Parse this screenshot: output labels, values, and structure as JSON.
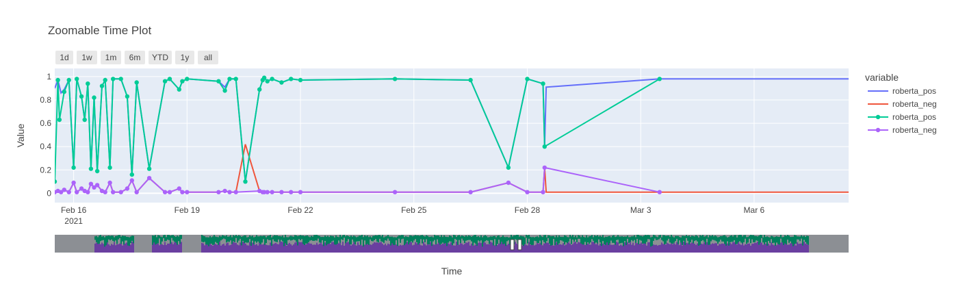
{
  "chart_data": {
    "type": "line",
    "title": "Zoomable Time Plot",
    "xlabel": "Time",
    "ylabel": "Value",
    "x_range": [
      "2021-02-15T12:00",
      "2021-03-08T12:00"
    ],
    "ylim": [
      -0.08,
      1.07
    ],
    "x_ticks": [
      {
        "x": "2021-02-16",
        "label": "Feb 16",
        "sublabel": "2021"
      },
      {
        "x": "2021-02-19",
        "label": "Feb 19",
        "sublabel": ""
      },
      {
        "x": "2021-02-22",
        "label": "Feb 22",
        "sublabel": ""
      },
      {
        "x": "2021-02-25",
        "label": "Feb 25",
        "sublabel": ""
      },
      {
        "x": "2021-02-28",
        "label": "Feb 28",
        "sublabel": ""
      },
      {
        "x": "2021-03-03",
        "label": "Mar 3",
        "sublabel": ""
      },
      {
        "x": "2021-03-06",
        "label": "Mar 6",
        "sublabel": ""
      }
    ],
    "y_ticks": [
      0,
      0.2,
      0.4,
      0.6,
      0.8,
      1
    ],
    "grid": true,
    "legend": {
      "title": "variable",
      "placement": "right"
    },
    "range_selector": [
      "1d",
      "1w",
      "1m",
      "6m",
      "YTD",
      "1y",
      "all"
    ],
    "range_slider": true,
    "series": [
      {
        "name": "roberta_pos",
        "mode": "lines",
        "color": "#636efa",
        "points": [
          [
            "2021-02-15T12:00",
            0.9
          ],
          [
            "2021-02-15T14:00",
            0.97
          ],
          [
            "2021-02-15T16:00",
            0.86
          ],
          [
            "2021-02-15T18:00",
            0.89
          ],
          [
            "2021-02-15T21:00",
            0.97
          ],
          [
            "2021-02-16T00:00",
            0.22
          ],
          [
            "2021-02-16T02:00",
            0.98
          ],
          [
            "2021-02-16T05:00",
            0.83
          ],
          [
            "2021-02-16T07:00",
            0.63
          ],
          [
            "2021-02-16T09:00",
            0.94
          ],
          [
            "2021-02-16T11:00",
            0.21
          ],
          [
            "2021-02-16T13:00",
            0.82
          ],
          [
            "2021-02-16T15:00",
            0.19
          ],
          [
            "2021-02-16T18:00",
            0.92
          ],
          [
            "2021-02-16T20:00",
            0.97
          ],
          [
            "2021-02-16T23:00",
            0.22
          ],
          [
            "2021-02-17T01:00",
            0.98
          ],
          [
            "2021-02-17T06:00",
            0.98
          ],
          [
            "2021-02-17T10:00",
            0.83
          ],
          [
            "2021-02-17T13:00",
            0.16
          ],
          [
            "2021-02-17T16:00",
            0.95
          ],
          [
            "2021-02-18T00:00",
            0.21
          ],
          [
            "2021-02-18T10:00",
            0.96
          ],
          [
            "2021-02-18T13:00",
            0.98
          ],
          [
            "2021-02-18T19:00",
            0.89
          ],
          [
            "2021-02-18T21:00",
            0.96
          ],
          [
            "2021-02-19T00:00",
            0.98
          ],
          [
            "2021-02-19T20:00",
            0.96
          ],
          [
            "2021-02-20T00:00",
            0.91
          ],
          [
            "2021-02-20T03:00",
            0.98
          ],
          [
            "2021-02-20T07:00",
            0.98
          ],
          [
            "2021-02-20T13:00",
            0.1
          ],
          [
            "2021-02-20T22:00",
            0.89
          ],
          [
            "2021-02-21T00:00",
            0.97
          ],
          [
            "2021-02-21T01:00",
            0.99
          ],
          [
            "2021-02-21T03:00",
            0.96
          ],
          [
            "2021-02-21T06:00",
            0.98
          ],
          [
            "2021-02-21T12:00",
            0.95
          ],
          [
            "2021-02-21T18:00",
            0.98
          ],
          [
            "2021-02-22T00:00",
            0.97
          ],
          [
            "2021-02-24T12:00",
            0.98
          ],
          [
            "2021-02-26T12:00",
            0.97
          ],
          [
            "2021-02-27T12:00",
            0.22
          ],
          [
            "2021-02-28T00:00",
            0.98
          ],
          [
            "2021-02-28T10:00",
            0.94
          ],
          [
            "2021-02-28T11:00",
            0.4
          ],
          [
            "2021-02-28T12:00",
            0.91
          ],
          [
            "2021-03-03T12:00",
            0.98
          ],
          [
            "2021-03-08T12:00",
            0.98
          ]
        ]
      },
      {
        "name": "roberta_neg",
        "mode": "lines",
        "color": "#ef553b",
        "points": [
          [
            "2021-02-15T12:00",
            0.01
          ],
          [
            "2021-02-15T14:00",
            0.02
          ],
          [
            "2021-02-15T16:00",
            0.01
          ],
          [
            "2021-02-15T18:00",
            0.03
          ],
          [
            "2021-02-15T21:00",
            0.01
          ],
          [
            "2021-02-16T00:00",
            0.09
          ],
          [
            "2021-02-16T02:00",
            0.01
          ],
          [
            "2021-02-16T05:00",
            0.04
          ],
          [
            "2021-02-16T07:00",
            0.02
          ],
          [
            "2021-02-16T09:00",
            0.01
          ],
          [
            "2021-02-16T11:00",
            0.08
          ],
          [
            "2021-02-16T13:00",
            0.05
          ],
          [
            "2021-02-16T15:00",
            0.07
          ],
          [
            "2021-02-16T18:00",
            0.02
          ],
          [
            "2021-02-16T20:00",
            0.01
          ],
          [
            "2021-02-16T23:00",
            0.09
          ],
          [
            "2021-02-17T01:00",
            0.01
          ],
          [
            "2021-02-17T06:00",
            0.01
          ],
          [
            "2021-02-17T10:00",
            0.04
          ],
          [
            "2021-02-17T13:00",
            0.11
          ],
          [
            "2021-02-17T16:00",
            0.01
          ],
          [
            "2021-02-18T00:00",
            0.13
          ],
          [
            "2021-02-18T10:00",
            0.01
          ],
          [
            "2021-02-18T13:00",
            0.01
          ],
          [
            "2021-02-18T19:00",
            0.04
          ],
          [
            "2021-02-18T21:00",
            0.01
          ],
          [
            "2021-02-19T00:00",
            0.01
          ],
          [
            "2021-02-19T20:00",
            0.01
          ],
          [
            "2021-02-20T00:00",
            0.02
          ],
          [
            "2021-02-20T03:00",
            0.01
          ],
          [
            "2021-02-20T07:00",
            0.01
          ],
          [
            "2021-02-20T13:00",
            0.42
          ],
          [
            "2021-02-20T22:00",
            0.02
          ],
          [
            "2021-02-21T00:00",
            0.01
          ],
          [
            "2021-02-21T01:00",
            0.01
          ],
          [
            "2021-02-21T03:00",
            0.01
          ],
          [
            "2021-02-21T06:00",
            0.01
          ],
          [
            "2021-02-21T12:00",
            0.01
          ],
          [
            "2021-02-21T18:00",
            0.01
          ],
          [
            "2021-02-22T00:00",
            0.01
          ],
          [
            "2021-02-24T12:00",
            0.01
          ],
          [
            "2021-02-26T12:00",
            0.01
          ],
          [
            "2021-02-27T12:00",
            0.09
          ],
          [
            "2021-02-28T00:00",
            0.01
          ],
          [
            "2021-02-28T10:00",
            0.01
          ],
          [
            "2021-02-28T11:00",
            0.22
          ],
          [
            "2021-02-28T12:00",
            0.01
          ],
          [
            "2021-03-03T12:00",
            0.01
          ],
          [
            "2021-03-08T12:00",
            0.01
          ]
        ]
      },
      {
        "name": "roberta_pos",
        "mode": "lines+markers",
        "color": "#00cc96",
        "points": [
          [
            "2021-02-15T12:00",
            0.1
          ],
          [
            "2021-02-15T14:00",
            0.97
          ],
          [
            "2021-02-15T15:00",
            0.63
          ],
          [
            "2021-02-15T18:00",
            0.87
          ],
          [
            "2021-02-15T21:00",
            0.97
          ],
          [
            "2021-02-16T00:00",
            0.22
          ],
          [
            "2021-02-16T02:00",
            0.98
          ],
          [
            "2021-02-16T05:00",
            0.83
          ],
          [
            "2021-02-16T07:00",
            0.63
          ],
          [
            "2021-02-16T09:00",
            0.94
          ],
          [
            "2021-02-16T11:00",
            0.21
          ],
          [
            "2021-02-16T13:00",
            0.82
          ],
          [
            "2021-02-16T15:00",
            0.19
          ],
          [
            "2021-02-16T18:00",
            0.92
          ],
          [
            "2021-02-16T20:00",
            0.97
          ],
          [
            "2021-02-16T23:00",
            0.22
          ],
          [
            "2021-02-17T01:00",
            0.98
          ],
          [
            "2021-02-17T06:00",
            0.98
          ],
          [
            "2021-02-17T10:00",
            0.83
          ],
          [
            "2021-02-17T13:00",
            0.16
          ],
          [
            "2021-02-17T16:00",
            0.95
          ],
          [
            "2021-02-18T00:00",
            0.21
          ],
          [
            "2021-02-18T10:00",
            0.96
          ],
          [
            "2021-02-18T13:00",
            0.98
          ],
          [
            "2021-02-18T19:00",
            0.89
          ],
          [
            "2021-02-18T21:00",
            0.96
          ],
          [
            "2021-02-19T00:00",
            0.98
          ],
          [
            "2021-02-19T20:00",
            0.96
          ],
          [
            "2021-02-20T00:00",
            0.88
          ],
          [
            "2021-02-20T03:00",
            0.98
          ],
          [
            "2021-02-20T07:00",
            0.98
          ],
          [
            "2021-02-20T13:00",
            0.1
          ],
          [
            "2021-02-20T22:00",
            0.89
          ],
          [
            "2021-02-21T00:00",
            0.97
          ],
          [
            "2021-02-21T01:00",
            0.99
          ],
          [
            "2021-02-21T03:00",
            0.96
          ],
          [
            "2021-02-21T06:00",
            0.98
          ],
          [
            "2021-02-21T12:00",
            0.95
          ],
          [
            "2021-02-21T18:00",
            0.98
          ],
          [
            "2021-02-22T00:00",
            0.97
          ],
          [
            "2021-02-24T12:00",
            0.98
          ],
          [
            "2021-02-26T12:00",
            0.97
          ],
          [
            "2021-02-27T12:00",
            0.22
          ],
          [
            "2021-02-28T00:00",
            0.98
          ],
          [
            "2021-02-28T10:00",
            0.94
          ],
          [
            "2021-02-28T11:00",
            0.4
          ],
          [
            "2021-03-03T12:00",
            0.98
          ]
        ]
      },
      {
        "name": "roberta_neg",
        "mode": "lines+markers",
        "color": "#ab63fa",
        "points": [
          [
            "2021-02-15T12:00",
            0.01
          ],
          [
            "2021-02-15T14:00",
            0.02
          ],
          [
            "2021-02-15T16:00",
            0.01
          ],
          [
            "2021-02-15T18:00",
            0.03
          ],
          [
            "2021-02-15T21:00",
            0.01
          ],
          [
            "2021-02-16T00:00",
            0.09
          ],
          [
            "2021-02-16T02:00",
            0.01
          ],
          [
            "2021-02-16T05:00",
            0.04
          ],
          [
            "2021-02-16T07:00",
            0.02
          ],
          [
            "2021-02-16T09:00",
            0.01
          ],
          [
            "2021-02-16T11:00",
            0.08
          ],
          [
            "2021-02-16T13:00",
            0.05
          ],
          [
            "2021-02-16T15:00",
            0.07
          ],
          [
            "2021-02-16T18:00",
            0.02
          ],
          [
            "2021-02-16T20:00",
            0.01
          ],
          [
            "2021-02-16T23:00",
            0.09
          ],
          [
            "2021-02-17T01:00",
            0.01
          ],
          [
            "2021-02-17T06:00",
            0.01
          ],
          [
            "2021-02-17T10:00",
            0.04
          ],
          [
            "2021-02-17T13:00",
            0.11
          ],
          [
            "2021-02-17T16:00",
            0.01
          ],
          [
            "2021-02-18T00:00",
            0.13
          ],
          [
            "2021-02-18T10:00",
            0.01
          ],
          [
            "2021-02-18T13:00",
            0.01
          ],
          [
            "2021-02-18T19:00",
            0.04
          ],
          [
            "2021-02-18T21:00",
            0.01
          ],
          [
            "2021-02-19T00:00",
            0.01
          ],
          [
            "2021-02-19T20:00",
            0.01
          ],
          [
            "2021-02-20T00:00",
            0.02
          ],
          [
            "2021-02-20T03:00",
            0.01
          ],
          [
            "2021-02-20T07:00",
            0.01
          ],
          [
            "2021-02-20T22:00",
            0.02
          ],
          [
            "2021-02-21T00:00",
            0.01
          ],
          [
            "2021-02-21T01:00",
            0.01
          ],
          [
            "2021-02-21T03:00",
            0.01
          ],
          [
            "2021-02-21T06:00",
            0.01
          ],
          [
            "2021-02-21T12:00",
            0.01
          ],
          [
            "2021-02-21T18:00",
            0.01
          ],
          [
            "2021-02-22T00:00",
            0.01
          ],
          [
            "2021-02-24T12:00",
            0.01
          ],
          [
            "2021-02-26T12:00",
            0.01
          ],
          [
            "2021-02-27T12:00",
            0.09
          ],
          [
            "2021-02-28T00:00",
            0.01
          ],
          [
            "2021-02-28T10:00",
            0.01
          ],
          [
            "2021-02-28T11:00",
            0.22
          ],
          [
            "2021-03-03T12:00",
            0.01
          ]
        ]
      }
    ]
  }
}
